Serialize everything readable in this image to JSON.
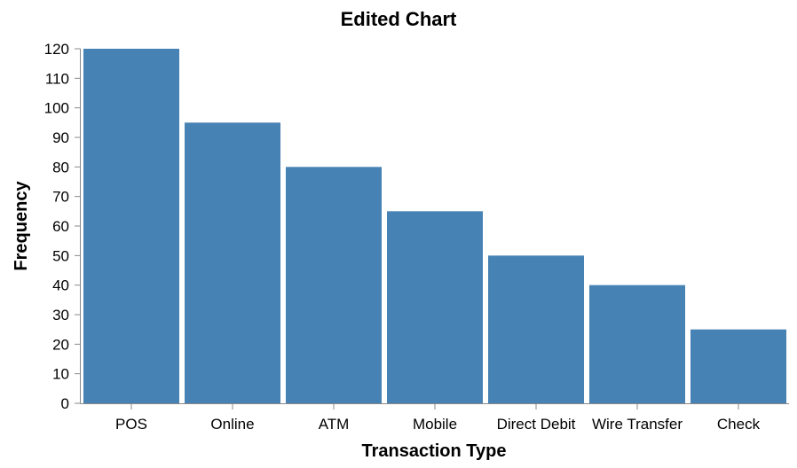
{
  "chart_data": {
    "type": "bar",
    "title": "Edited Chart",
    "xlabel": "Transaction Type",
    "ylabel": "Frequency",
    "categories": [
      "POS",
      "Online",
      "ATM",
      "Mobile",
      "Direct Debit",
      "Wire Transfer",
      "Check"
    ],
    "values": [
      120,
      95,
      80,
      65,
      50,
      40,
      25
    ],
    "ylim": [
      0,
      120
    ],
    "yticks": [
      0,
      10,
      20,
      30,
      40,
      50,
      60,
      70,
      80,
      90,
      100,
      110,
      120
    ],
    "grid": false,
    "colors": {
      "bar": "#4682b4",
      "axis": "#888888"
    }
  }
}
